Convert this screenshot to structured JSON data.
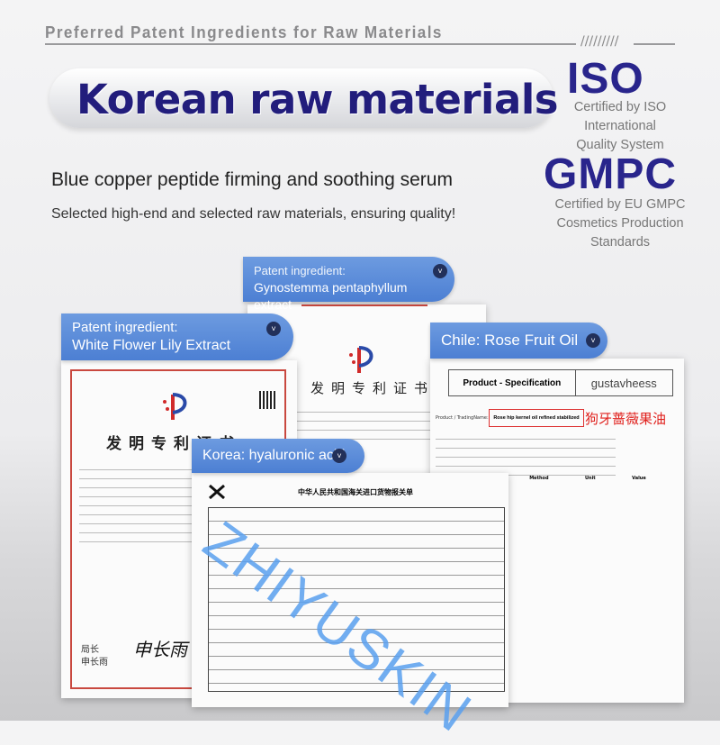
{
  "header": {
    "tagline": "Preferred Patent Ingredients for Raw Materials",
    "slashes": "/////////"
  },
  "hero": {
    "title": "Korean raw materials",
    "subtitle": "Blue copper peptide firming and soothing serum",
    "description": "Selected high-end and selected raw materials, ensuring quality!"
  },
  "certifications": [
    {
      "name": "ISO",
      "lines": [
        "Certified by ISO International",
        "Quality System"
      ]
    },
    {
      "name": "GMPC",
      "lines": [
        "Certified by EU GMPC",
        "Cosmetics Production",
        "Standards"
      ]
    }
  ],
  "labels": {
    "gynostemma": {
      "line1": "Patent ingredient:",
      "line2": "Gynostemma pentaphyllum extract"
    },
    "lily": {
      "line1": "Patent ingredient:",
      "line2": "White Flower Lily Extract"
    },
    "rose": {
      "line1": "Chile: Rose Fruit Oil"
    },
    "hyaluronic": {
      "line1": "Korea: hyaluronic acid"
    }
  },
  "documents": {
    "patent_title": "发明专利证书",
    "signature_title": "局长",
    "signature_name": "申长雨",
    "signature_script": "申长雨",
    "customs_title": "中华人民共和国海关进口货物报关单",
    "spec_title": "Product - Specification",
    "spec_brand": "gustavheess",
    "spec_product_label": "Product / TradingName:",
    "spec_product": "Rose hip kernel oil refined stabilized",
    "spec_product_cn": "狗牙蔷薇果油",
    "spec_columns": [
      "Method",
      "Unit",
      "Value"
    ],
    "watermark": "ZHIYUSKIN"
  },
  "colors": {
    "navy": "#221d7c",
    "label_blue": "#5787d8",
    "watermark_blue": "#5aa0ef",
    "stamp_red": "#e0201c"
  },
  "icons": [
    "chevron-down-icon"
  ]
}
